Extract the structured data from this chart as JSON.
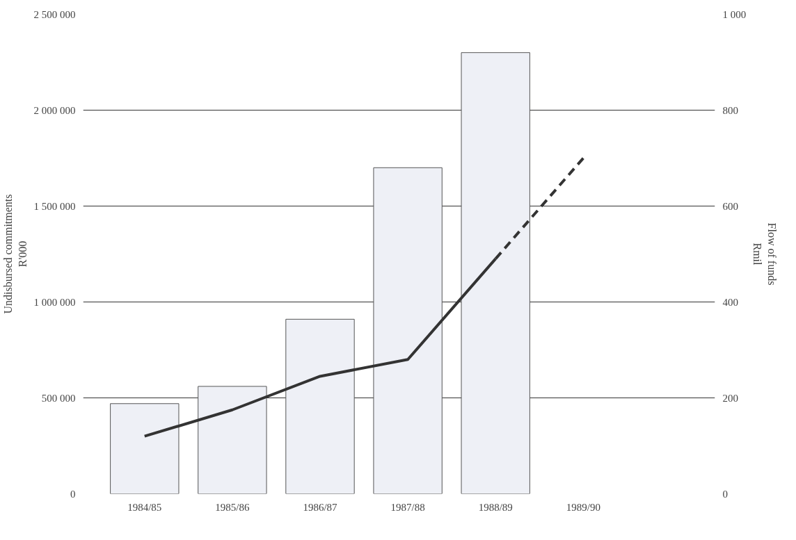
{
  "chart_data": {
    "type": "bar",
    "ylabel": "Undisbursed commitments\nR'000",
    "y2label": "Flow of funds\nRmil",
    "categories": [
      "1984/85",
      "1985/86",
      "1986/87",
      "1987/88",
      "1988/89",
      "1989/90"
    ],
    "series": [
      {
        "color": "#eef0f6",
        "values": [
          470000,
          560000,
          910000,
          1700000,
          2300000,
          null
        ]
      },
      {
        "type": "line",
        "axis": "y2",
        "color": "#333333",
        "line_style": "solid",
        "values": [
          120,
          175,
          245,
          280,
          490,
          null
        ]
      },
      {
        "type": "line",
        "axis": "y2",
        "color": "#333333",
        "line_style": "dashed",
        "values": [
          null,
          null,
          null,
          null,
          490,
          700
        ]
      }
    ],
    "ylim": [
      0,
      2500000
    ],
    "yticks": [
      0,
      {
        "value": 500000,
        "label": "500 000"
      },
      {
        "value": 1000000,
        "label": "1 000 000"
      },
      {
        "value": 1500000,
        "label": "1 500 000"
      },
      {
        "value": 2000000,
        "label": "2 000 000"
      },
      {
        "value": 2500000,
        "label": "2 500 000"
      }
    ],
    "y2lim": [
      0,
      1000
    ],
    "y2ticks": [
      0,
      200,
      400,
      600,
      800,
      {
        "value": 1000,
        "label": "1 000"
      }
    ],
    "grid": "y",
    "marker": "none"
  }
}
